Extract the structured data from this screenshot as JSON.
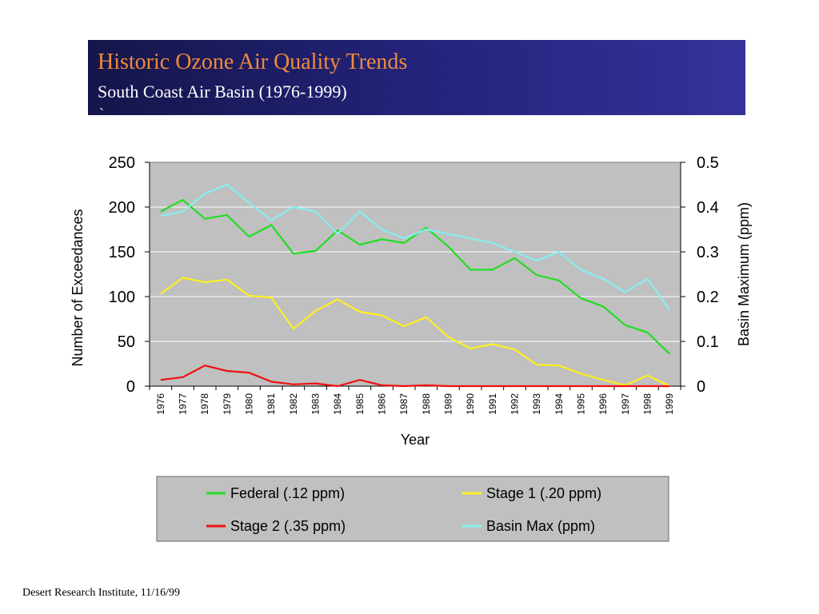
{
  "header": {
    "title": "Historic Ozone Air Quality Trends",
    "subtitle": "South Coast Air Basin (1976-1999)",
    "subtitle_tail": "`"
  },
  "footer": {
    "text": "Desert Research Institute, 11/16/99"
  },
  "colors": {
    "plot_background": "#c0c0c0",
    "title": "#f08a3c",
    "banner": "#23237a"
  },
  "chart_data": {
    "type": "line",
    "x": [
      "1976",
      "1977",
      "1978",
      "1979",
      "1980",
      "1981",
      "1982",
      "1983",
      "1984",
      "1985",
      "1986",
      "1987",
      "1988",
      "1989",
      "1990",
      "1991",
      "1992",
      "1993",
      "1994",
      "1995",
      "1996",
      "1997",
      "1998",
      "1999"
    ],
    "xlabel": "Year",
    "ylabel": "Number of Exceedances",
    "ylabel_right": "Basin Maximum (ppm)",
    "ylim": [
      0,
      250
    ],
    "yticks": [
      0,
      50,
      100,
      150,
      200,
      250
    ],
    "ylim_right": [
      0,
      0.5
    ],
    "yticks_right": [
      "0",
      "0.1",
      "0.2",
      "0.3",
      "0.4",
      "0.5"
    ],
    "grid": true,
    "legend_position": "bottom",
    "series": [
      {
        "name": "Federal (.12 ppm)",
        "axis": "left",
        "color": "#22dd22",
        "values": [
          195,
          208,
          187,
          191,
          167,
          180,
          148,
          151,
          174,
          158,
          164,
          160,
          177,
          156,
          130,
          130,
          143,
          124,
          118,
          98,
          89,
          68,
          60,
          36
        ]
      },
      {
        "name": "Stage 1 (.20 ppm)",
        "axis": "left",
        "color": "#ffee22",
        "values": [
          103,
          121,
          116,
          119,
          101,
          99,
          64,
          84,
          97,
          83,
          79,
          67,
          77,
          55,
          42,
          47,
          41,
          24,
          23,
          14,
          7,
          1,
          12,
          0
        ]
      },
      {
        "name": "Stage 2 (.35 ppm)",
        "axis": "left",
        "color": "#ee1111",
        "values": [
          7,
          10,
          23,
          17,
          15,
          5,
          2,
          3,
          0,
          7,
          1,
          0,
          1,
          0,
          0,
          0,
          0,
          0,
          0,
          0,
          0,
          0,
          0,
          0
        ]
      },
      {
        "name": "Basin Max (ppm)",
        "axis": "right",
        "color": "#88eeee",
        "values": [
          0.38,
          0.39,
          0.43,
          0.45,
          0.41,
          0.37,
          0.4,
          0.39,
          0.34,
          0.39,
          0.35,
          0.33,
          0.35,
          0.34,
          0.33,
          0.32,
          0.3,
          0.28,
          0.3,
          0.26,
          0.24,
          0.21,
          0.24,
          0.17
        ]
      }
    ]
  }
}
